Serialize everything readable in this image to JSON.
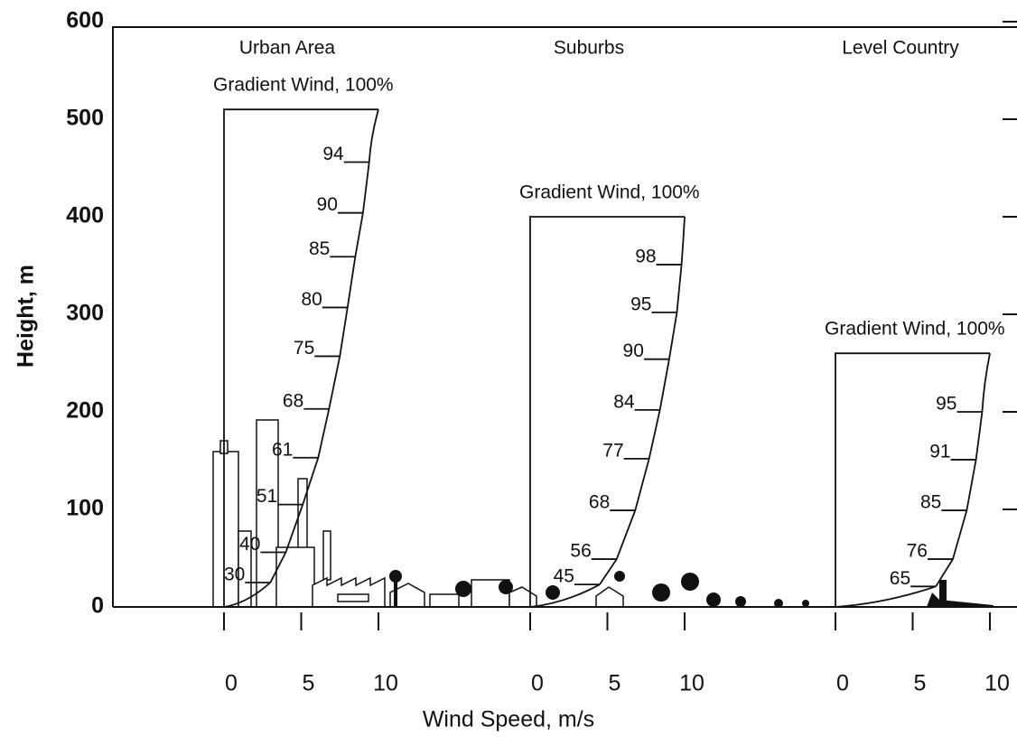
{
  "chart_data": {
    "type": "wind-profile",
    "ylabel": "Height, m",
    "xlabel": "Wind Speed, m/s",
    "ylim": [
      0,
      600
    ],
    "yticks": [
      0,
      100,
      200,
      300,
      400,
      500,
      600
    ],
    "panels": [
      {
        "title": "Urban Area",
        "annotation": "Gradient Wind, 100%",
        "gradient_height": 510,
        "xlim": [
          0,
          10
        ],
        "xticks": [
          0,
          5,
          10
        ],
        "percents": [
          94,
          90,
          85,
          80,
          75,
          68,
          61,
          51,
          40,
          30
        ],
        "heights": [
          456,
          404,
          359,
          307,
          257,
          203,
          153,
          105,
          56,
          25
        ]
      },
      {
        "title": "Suburbs",
        "annotation": "Gradient Wind, 100%",
        "gradient_height": 400,
        "xlim": [
          0,
          10
        ],
        "xticks": [
          0,
          5,
          10
        ],
        "percents": [
          98,
          95,
          90,
          84,
          77,
          68,
          56,
          45
        ],
        "heights": [
          351,
          302,
          254,
          202,
          152,
          99,
          49,
          23
        ]
      },
      {
        "title": "Level Country",
        "annotation": "Gradient Wind, 100%",
        "gradient_height": 260,
        "xlim": [
          0,
          10
        ],
        "xticks": [
          0,
          5,
          10
        ],
        "percents": [
          95,
          91,
          85,
          76,
          65
        ],
        "heights": [
          200,
          151,
          99,
          49,
          21
        ]
      }
    ]
  }
}
